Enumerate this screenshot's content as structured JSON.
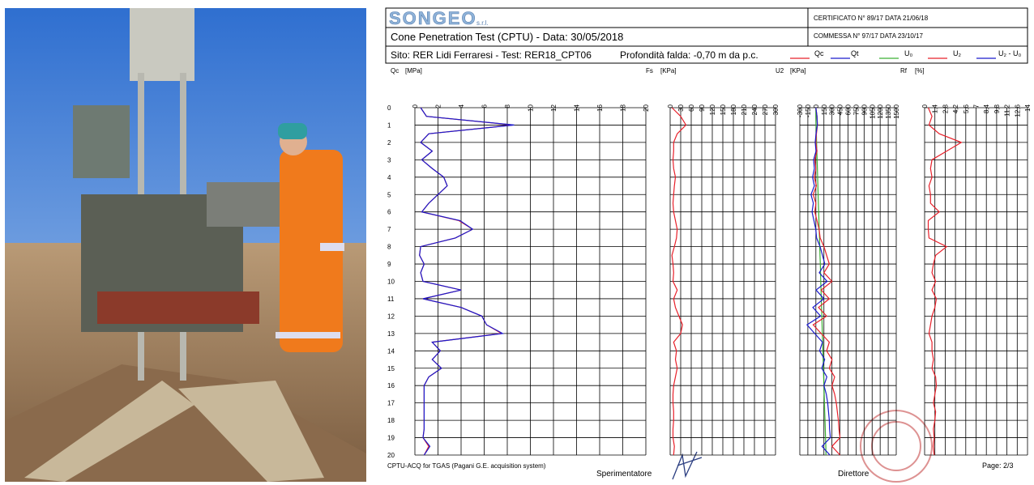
{
  "header": {
    "logo": "SONGEO",
    "logo_suffix": "s.r.l.",
    "test_title": "Cone Penetration Test (CPTU) - Data: 30/05/2018",
    "site": "Sito: RER Lidi Ferraresi - Test: RER18_CPT06",
    "water_table": "Profondità falda: -0,70 m da p.c.",
    "certificate": "CERTIFICATO N° 89/17   DATA 21/06/18",
    "order": "COMMESSA   N° 97/17 DATA 23/10/17"
  },
  "footer": {
    "software": "CPTU-ACQ for TGAS (Pagani G.E. acquisition system)",
    "operator": "Sperimentatore",
    "director": "Direttore",
    "page": "Page: 2/3"
  },
  "chart_data": [
    {
      "type": "line",
      "x_label": "Qc",
      "x_unit": "[MPa]",
      "xlim": [
        0,
        20
      ],
      "xticks": [
        0,
        2,
        4,
        6,
        8,
        10,
        12,
        14,
        16,
        18,
        20
      ],
      "ylim": [
        0,
        20
      ],
      "yticks": [
        0,
        1,
        2,
        3,
        4,
        5,
        6,
        7,
        8,
        9,
        10,
        11,
        12,
        13,
        14,
        15,
        16,
        17,
        18,
        19,
        20
      ],
      "y": [
        0,
        0.5,
        1,
        1.5,
        2,
        2.5,
        3,
        3.5,
        4,
        4.5,
        5,
        5.5,
        6,
        6.5,
        7,
        7.5,
        8,
        8.5,
        9,
        9.5,
        10,
        10.5,
        11,
        11.5,
        12,
        12.5,
        13,
        13.5,
        14,
        14.5,
        15,
        15.5,
        16,
        16.5,
        17,
        17.5,
        18,
        18.5,
        19,
        19.5,
        20
      ],
      "series": [
        {
          "name": "Qc",
          "color": "#e8202a",
          "values": [
            0.5,
            1,
            8.5,
            1.2,
            0.5,
            1.5,
            0.6,
            1.5,
            2.5,
            2.8,
            2,
            1.2,
            0.6,
            3.8,
            5,
            3.5,
            0.5,
            0.4,
            0.8,
            0.5,
            0.7,
            4,
            0.7,
            4,
            5.8,
            6.2,
            7.5,
            1.5,
            2.2,
            1.5,
            2.3,
            1.2,
            0.8,
            0.8,
            0.8,
            0.8,
            0.8,
            0.8,
            0.7,
            1.2,
            0.8
          ]
        },
        {
          "name": "Qt",
          "color": "#1a1acc",
          "values": [
            0.5,
            1,
            8.6,
            1.2,
            0.5,
            1.5,
            0.6,
            1.5,
            2.5,
            2.8,
            2,
            1.2,
            0.6,
            3.9,
            5,
            3.5,
            0.5,
            0.4,
            0.8,
            0.5,
            0.7,
            4,
            0.7,
            4,
            5.8,
            6.2,
            7.6,
            1.5,
            2.2,
            1.5,
            2.3,
            1.2,
            0.8,
            0.8,
            0.8,
            0.8,
            0.8,
            0.8,
            0.7,
            1.3,
            0.8
          ]
        }
      ]
    },
    {
      "type": "line",
      "x_label": "Fs",
      "x_unit": "[KPa]",
      "xlim": [
        0,
        300
      ],
      "xticks": [
        0,
        30,
        60,
        90,
        120,
        150,
        180,
        210,
        240,
        270,
        300
      ],
      "series": [
        {
          "name": "Fs",
          "color": "#e8202a",
          "values": [
            5,
            30,
            45,
            20,
            10,
            10,
            8,
            10,
            15,
            12,
            10,
            8,
            10,
            15,
            20,
            18,
            12,
            5,
            8,
            10,
            8,
            20,
            10,
            15,
            25,
            35,
            30,
            10,
            18,
            15,
            20,
            15,
            10,
            8,
            8,
            10,
            10,
            8,
            8,
            12,
            10
          ]
        }
      ]
    },
    {
      "type": "line",
      "x_label": "U2",
      "x_unit": "[KPa]",
      "xlim": [
        -300,
        1500
      ],
      "xticks": [
        -300,
        -150,
        0,
        150,
        300,
        450,
        600,
        750,
        900,
        1050,
        1200,
        1350,
        1500
      ],
      "series": [
        {
          "name": "U₀",
          "color": "#3cb034",
          "values": [
            0,
            0,
            3,
            8,
            13,
            18,
            23,
            28,
            33,
            38,
            42,
            47,
            52,
            57,
            62,
            67,
            72,
            77,
            82,
            87,
            91,
            96,
            101,
            106,
            111,
            116,
            121,
            126,
            131,
            136,
            140,
            145,
            150,
            155,
            160,
            165,
            170,
            175,
            180,
            185,
            189
          ]
        },
        {
          "name": "U₂",
          "color": "#e8202a",
          "values": [
            0,
            20,
            30,
            10,
            0,
            20,
            -20,
            0,
            -30,
            10,
            -50,
            0,
            -20,
            20,
            60,
            80,
            150,
            200,
            250,
            150,
            300,
            100,
            250,
            50,
            200,
            -50,
            100,
            250,
            200,
            300,
            250,
            350,
            300,
            350,
            380,
            400,
            420,
            430,
            450,
            300,
            450
          ]
        },
        {
          "name": "U₂ - U₀",
          "color": "#1a1acc",
          "values": [
            0,
            20,
            27,
            2,
            -13,
            2,
            -43,
            -28,
            -63,
            -28,
            -92,
            -47,
            -72,
            -37,
            -2,
            13,
            78,
            123,
            168,
            63,
            209,
            4,
            149,
            -56,
            89,
            -166,
            -21,
            124,
            69,
            164,
            110,
            205,
            150,
            195,
            220,
            235,
            250,
            255,
            270,
            115,
            261
          ]
        }
      ]
    },
    {
      "type": "line",
      "x_label": "Rf",
      "x_unit": "[%]",
      "xlim": [
        0,
        14
      ],
      "xticks": [
        0,
        {
          "value": 1.4,
          "label": "1,4"
        },
        {
          "value": 2.8,
          "label": "2,8"
        },
        {
          "value": 4.2,
          "label": "4,2"
        },
        {
          "value": 5.6,
          "label": "5,6"
        },
        7,
        {
          "value": 8.4,
          "label": "8,4"
        },
        {
          "value": 9.8,
          "label": "9,8"
        },
        {
          "value": 11.2,
          "label": "11,2"
        },
        {
          "value": 12.6,
          "label": "12,6"
        },
        14
      ],
      "series": [
        {
          "name": "Rf",
          "color": "#e8202a",
          "values": [
            0.5,
            1,
            0.6,
            2,
            5,
            3,
            1,
            0.8,
            1,
            0.6,
            0.8,
            0.8,
            2,
            0.5,
            0.5,
            0.6,
            3,
            1.5,
            1.2,
            1,
            1.5,
            1,
            1.6,
            1.4,
            1,
            0.8,
            0.6,
            1,
            1,
            1.2,
            1,
            1.5,
            1.6,
            1.4,
            1.2,
            1.5,
            1.4,
            1.2,
            1.3,
            1.2,
            1.3
          ]
        }
      ]
    }
  ]
}
